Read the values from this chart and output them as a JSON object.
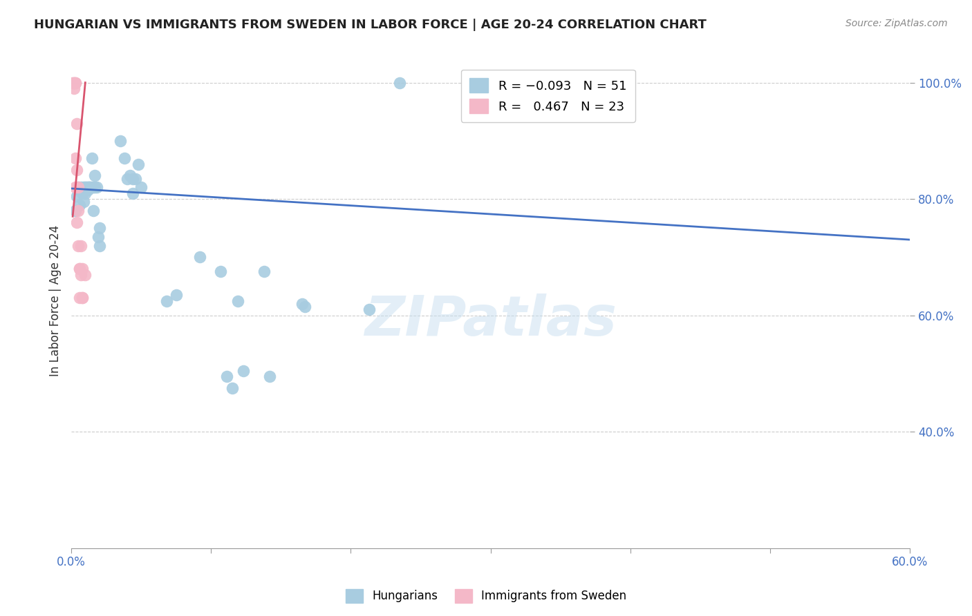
{
  "title": "HUNGARIAN VS IMMIGRANTS FROM SWEDEN IN LABOR FORCE | AGE 20-24 CORRELATION CHART",
  "source": "Source: ZipAtlas.com",
  "ylabel": "In Labor Force | Age 20-24",
  "xlim": [
    0.0,
    0.6
  ],
  "ylim": [
    0.2,
    1.05
  ],
  "xticks": [
    0.0,
    0.1,
    0.2,
    0.3,
    0.4,
    0.5,
    0.6
  ],
  "xtick_labels_show": [
    "0.0%",
    "",
    "",
    "",
    "",
    "",
    "60.0%"
  ],
  "yticks": [
    0.4,
    0.6,
    0.8,
    1.0
  ],
  "ytick_labels": [
    "40.0%",
    "60.0%",
    "80.0%",
    "100.0%"
  ],
  "blue_color": "#a8cce0",
  "pink_color": "#f4b8c8",
  "trendline_blue": "#4472c4",
  "trendline_pink": "#d9546e",
  "legend_text_blue": "R = −0.093   N = 51",
  "legend_text_pink": "R =   0.467   N = 23",
  "watermark": "ZIPatlas",
  "blue_scatter_x": [
    0.003,
    0.004,
    0.005,
    0.006,
    0.006,
    0.007,
    0.008,
    0.009,
    0.009,
    0.01,
    0.01,
    0.011,
    0.011,
    0.012,
    0.012,
    0.013,
    0.013,
    0.014,
    0.015,
    0.015,
    0.016,
    0.016,
    0.017,
    0.017,
    0.018,
    0.019,
    0.02,
    0.02,
    0.035,
    0.038,
    0.04,
    0.042,
    0.044,
    0.044,
    0.046,
    0.048,
    0.05,
    0.068,
    0.075,
    0.092,
    0.107,
    0.111,
    0.115,
    0.119,
    0.123,
    0.138,
    0.142,
    0.165,
    0.167,
    0.213,
    0.235
  ],
  "blue_scatter_y": [
    0.78,
    0.805,
    0.82,
    0.79,
    0.815,
    0.82,
    0.81,
    0.795,
    0.82,
    0.82,
    0.81,
    0.815,
    0.82,
    0.815,
    0.82,
    0.82,
    0.82,
    0.82,
    0.82,
    0.87,
    0.82,
    0.78,
    0.84,
    0.82,
    0.82,
    0.735,
    0.75,
    0.72,
    0.9,
    0.87,
    0.835,
    0.84,
    0.835,
    0.81,
    0.835,
    0.86,
    0.82,
    0.625,
    0.635,
    0.7,
    0.675,
    0.495,
    0.475,
    0.625,
    0.505,
    0.675,
    0.495,
    0.62,
    0.615,
    0.61,
    1.0
  ],
  "pink_scatter_x": [
    0.001,
    0.002,
    0.002,
    0.002,
    0.003,
    0.003,
    0.003,
    0.003,
    0.004,
    0.004,
    0.004,
    0.005,
    0.005,
    0.005,
    0.006,
    0.006,
    0.006,
    0.007,
    0.007,
    0.008,
    0.008,
    0.008,
    0.01
  ],
  "pink_scatter_y": [
    1.0,
    1.0,
    1.0,
    0.99,
    1.0,
    1.0,
    0.87,
    0.82,
    0.93,
    0.85,
    0.76,
    0.82,
    0.78,
    0.72,
    0.68,
    0.68,
    0.63,
    0.72,
    0.67,
    0.63,
    0.63,
    0.68,
    0.67
  ],
  "blue_trendline_x": [
    0.0,
    0.6
  ],
  "blue_trendline_y": [
    0.818,
    0.73
  ],
  "pink_trendline_x": [
    0.001,
    0.01
  ],
  "pink_trendline_y": [
    0.77,
    1.0
  ]
}
